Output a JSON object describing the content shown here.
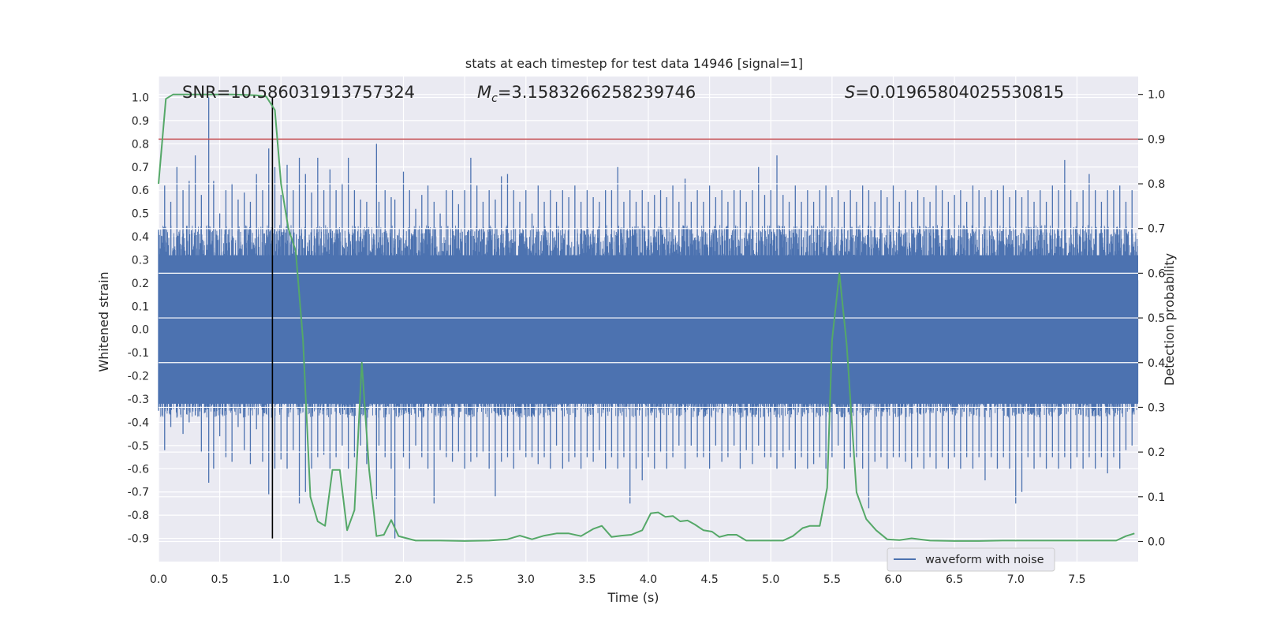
{
  "chart_data": {
    "type": "line",
    "title": "stats at each timestep for test data 14946 [signal=1]",
    "xlabel": "Time (s)",
    "ylabel": "Whitened strain",
    "y2label": "Detection probability",
    "xlim": [
      0.0,
      8.0
    ],
    "ylim": [
      -1.0,
      1.09
    ],
    "y2lim": [
      -0.045,
      1.04
    ],
    "grid": true,
    "x_ticks": [
      "0.0",
      "0.5",
      "1.0",
      "1.5",
      "2.0",
      "2.5",
      "3.0",
      "3.5",
      "4.0",
      "4.5",
      "5.0",
      "5.5",
      "6.0",
      "6.5",
      "7.0",
      "7.5"
    ],
    "y_ticks": [
      "-0.9",
      "-0.8",
      "-0.7",
      "-0.6",
      "-0.5",
      "-0.4",
      "-0.3",
      "-0.2",
      "-0.1",
      "0.0",
      "0.1",
      "0.2",
      "0.3",
      "0.4",
      "0.5",
      "0.6",
      "0.7",
      "0.8",
      "0.9",
      "1.0"
    ],
    "y2_ticks": [
      "0.0",
      "0.1",
      "0.2",
      "0.3",
      "0.4",
      "0.5",
      "0.6",
      "0.7",
      "0.8",
      "0.9",
      "1.0"
    ],
    "annotations": {
      "snr": "SNR=10.586031913757324",
      "mc_symbol": "M",
      "mc_sub": "c",
      "mc_value": "=3.1583266258239746",
      "s_symbol": "S",
      "s_value": "=0.01965804025530815"
    },
    "legend": {
      "entries": [
        "waveform with noise"
      ],
      "placement": "lower-right"
    },
    "threshold": {
      "axis": "right",
      "value": 0.9,
      "color": "#c44e52"
    },
    "marker_line": {
      "x": 0.93,
      "y_bottom": -0.9,
      "y_top": 1.0,
      "color": "#000000"
    },
    "waveform": {
      "name": "waveform with noise",
      "color": "#4c72b0",
      "peaks": [
        [
          0.0,
          0.43,
          -0.35
        ],
        [
          0.05,
          0.62,
          -0.52
        ],
        [
          0.1,
          0.55,
          -0.42
        ],
        [
          0.15,
          0.7,
          -0.38
        ],
        [
          0.2,
          0.6,
          -0.45
        ],
        [
          0.25,
          0.64,
          -0.4
        ],
        [
          0.3,
          0.75,
          -0.37
        ],
        [
          0.35,
          0.58,
          -0.53
        ],
        [
          0.41,
          1.0,
          -0.66
        ],
        [
          0.45,
          0.64,
          -0.6
        ],
        [
          0.5,
          0.5,
          -0.46
        ],
        [
          0.55,
          0.6,
          -0.55
        ],
        [
          0.6,
          0.63,
          -0.57
        ],
        [
          0.65,
          0.56,
          -0.42
        ],
        [
          0.7,
          0.59,
          -0.52
        ],
        [
          0.75,
          0.55,
          -0.58
        ],
        [
          0.8,
          0.67,
          -0.43
        ],
        [
          0.85,
          0.6,
          -0.57
        ],
        [
          0.9,
          0.78,
          -0.71
        ],
        [
          0.95,
          0.7,
          -0.6
        ],
        [
          1.0,
          0.58,
          -0.56
        ],
        [
          1.05,
          0.71,
          -0.6
        ],
        [
          1.1,
          0.6,
          -0.52
        ],
        [
          1.15,
          0.74,
          -0.75
        ],
        [
          1.2,
          0.67,
          -0.7
        ],
        [
          1.25,
          0.59,
          -0.6
        ],
        [
          1.3,
          0.74,
          -0.55
        ],
        [
          1.35,
          0.6,
          -0.54
        ],
        [
          1.4,
          0.69,
          -0.6
        ],
        [
          1.45,
          0.6,
          -0.55
        ],
        [
          1.5,
          0.63,
          -0.5
        ],
        [
          1.55,
          0.74,
          -0.6
        ],
        [
          1.6,
          0.6,
          -0.55
        ],
        [
          1.65,
          0.56,
          -0.5
        ],
        [
          1.7,
          0.55,
          -0.58
        ],
        [
          1.78,
          0.8,
          -0.73
        ],
        [
          1.8,
          0.55,
          -0.5
        ],
        [
          1.85,
          0.6,
          -0.55
        ],
        [
          1.9,
          0.57,
          -0.6
        ],
        [
          1.93,
          0.56,
          -0.9
        ],
        [
          2.0,
          0.68,
          -0.55
        ],
        [
          2.05,
          0.6,
          -0.6
        ],
        [
          2.1,
          0.52,
          -0.5
        ],
        [
          2.15,
          0.58,
          -0.55
        ],
        [
          2.2,
          0.62,
          -0.6
        ],
        [
          2.25,
          0.55,
          -0.75
        ],
        [
          2.3,
          0.5,
          -0.52
        ],
        [
          2.35,
          0.6,
          -0.55
        ],
        [
          2.4,
          0.6,
          -0.57
        ],
        [
          2.45,
          0.54,
          -0.53
        ],
        [
          2.5,
          0.6,
          -0.6
        ],
        [
          2.55,
          0.74,
          -0.57
        ],
        [
          2.6,
          0.62,
          -0.55
        ],
        [
          2.65,
          0.55,
          -0.53
        ],
        [
          2.7,
          0.6,
          -0.6
        ],
        [
          2.75,
          0.56,
          -0.72
        ],
        [
          2.8,
          0.66,
          -0.57
        ],
        [
          2.85,
          0.67,
          -0.55
        ],
        [
          2.9,
          0.6,
          -0.6
        ],
        [
          2.95,
          0.55,
          -0.52
        ],
        [
          3.0,
          0.6,
          -0.55
        ],
        [
          3.05,
          0.5,
          -0.55
        ],
        [
          3.1,
          0.62,
          -0.58
        ],
        [
          3.15,
          0.55,
          -0.55
        ],
        [
          3.2,
          0.6,
          -0.6
        ],
        [
          3.25,
          0.55,
          -0.5
        ],
        [
          3.3,
          0.6,
          -0.6
        ],
        [
          3.35,
          0.57,
          -0.57
        ],
        [
          3.4,
          0.62,
          -0.55
        ],
        [
          3.45,
          0.55,
          -0.6
        ],
        [
          3.5,
          0.6,
          -0.55
        ],
        [
          3.55,
          0.57,
          -0.57
        ],
        [
          3.6,
          0.55,
          -0.52
        ],
        [
          3.65,
          0.6,
          -0.6
        ],
        [
          3.7,
          0.6,
          -0.55
        ],
        [
          3.75,
          0.7,
          -0.6
        ],
        [
          3.8,
          0.55,
          -0.55
        ],
        [
          3.85,
          0.6,
          -0.75
        ],
        [
          3.9,
          0.55,
          -0.6
        ],
        [
          3.95,
          0.6,
          -0.65
        ],
        [
          4.0,
          0.55,
          -0.55
        ],
        [
          4.05,
          0.58,
          -0.6
        ],
        [
          4.1,
          0.6,
          -0.53
        ],
        [
          4.15,
          0.57,
          -0.6
        ],
        [
          4.2,
          0.62,
          -0.55
        ],
        [
          4.25,
          0.55,
          -0.5
        ],
        [
          4.3,
          0.65,
          -0.6
        ],
        [
          4.35,
          0.55,
          -0.5
        ],
        [
          4.4,
          0.6,
          -0.55
        ],
        [
          4.45,
          0.55,
          -0.55
        ],
        [
          4.5,
          0.62,
          -0.6
        ],
        [
          4.55,
          0.57,
          -0.5
        ],
        [
          4.6,
          0.6,
          -0.57
        ],
        [
          4.65,
          0.55,
          -0.55
        ],
        [
          4.7,
          0.6,
          -0.5
        ],
        [
          4.75,
          0.6,
          -0.6
        ],
        [
          4.8,
          0.55,
          -0.52
        ],
        [
          4.85,
          0.6,
          -0.58
        ],
        [
          4.9,
          0.7,
          -0.5
        ],
        [
          4.95,
          0.58,
          -0.55
        ],
        [
          5.0,
          0.6,
          -0.55
        ],
        [
          5.05,
          0.75,
          -0.6
        ],
        [
          5.1,
          0.58,
          -0.55
        ],
        [
          5.15,
          0.55,
          -0.52
        ],
        [
          5.2,
          0.62,
          -0.6
        ],
        [
          5.25,
          0.55,
          -0.55
        ],
        [
          5.3,
          0.6,
          -0.6
        ],
        [
          5.35,
          0.55,
          -0.58
        ],
        [
          5.4,
          0.6,
          -0.55
        ],
        [
          5.45,
          0.62,
          -0.6
        ],
        [
          5.5,
          0.57,
          -0.55
        ],
        [
          5.55,
          0.6,
          -0.5
        ],
        [
          5.6,
          0.55,
          -0.6
        ],
        [
          5.65,
          0.6,
          -0.55
        ],
        [
          5.7,
          0.55,
          -0.55
        ],
        [
          5.75,
          0.62,
          -0.6
        ],
        [
          5.8,
          0.6,
          -0.77
        ],
        [
          5.85,
          0.55,
          -0.57
        ],
        [
          5.9,
          0.6,
          -0.55
        ],
        [
          5.95,
          0.57,
          -0.6
        ],
        [
          6.0,
          0.62,
          -0.55
        ],
        [
          6.05,
          0.55,
          -0.55
        ],
        [
          6.1,
          0.6,
          -0.57
        ],
        [
          6.15,
          0.55,
          -0.6
        ],
        [
          6.2,
          0.6,
          -0.55
        ],
        [
          6.25,
          0.57,
          -0.6
        ],
        [
          6.3,
          0.55,
          -0.55
        ],
        [
          6.35,
          0.62,
          -0.6
        ],
        [
          6.4,
          0.6,
          -0.55
        ],
        [
          6.45,
          0.55,
          -0.6
        ],
        [
          6.5,
          0.58,
          -0.55
        ],
        [
          6.55,
          0.6,
          -0.6
        ],
        [
          6.6,
          0.55,
          -0.55
        ],
        [
          6.65,
          0.62,
          -0.6
        ],
        [
          6.7,
          0.6,
          -0.55
        ],
        [
          6.75,
          0.57,
          -0.65
        ],
        [
          6.8,
          0.6,
          -0.55
        ],
        [
          6.85,
          0.6,
          -0.6
        ],
        [
          6.9,
          0.62,
          -0.55
        ],
        [
          6.95,
          0.57,
          -0.6
        ],
        [
          7.0,
          0.6,
          -0.75
        ],
        [
          7.05,
          0.57,
          -0.7
        ],
        [
          7.1,
          0.6,
          -0.55
        ],
        [
          7.15,
          0.55,
          -0.6
        ],
        [
          7.2,
          0.6,
          -0.55
        ],
        [
          7.25,
          0.55,
          -0.6
        ],
        [
          7.3,
          0.62,
          -0.55
        ],
        [
          7.35,
          0.6,
          -0.6
        ],
        [
          7.4,
          0.73,
          -0.55
        ],
        [
          7.45,
          0.6,
          -0.6
        ],
        [
          7.5,
          0.55,
          -0.55
        ],
        [
          7.55,
          0.6,
          -0.6
        ],
        [
          7.6,
          0.67,
          -0.55
        ],
        [
          7.65,
          0.6,
          -0.6
        ],
        [
          7.7,
          0.55,
          -0.55
        ],
        [
          7.75,
          0.6,
          -0.62
        ],
        [
          7.8,
          0.6,
          -0.55
        ],
        [
          7.85,
          0.62,
          -0.6
        ],
        [
          7.9,
          0.55,
          -0.52
        ],
        [
          7.95,
          0.6,
          -0.5
        ]
      ]
    },
    "detection_probability": {
      "name": "Detection probability",
      "color": "#55a868",
      "x": [
        0.0,
        0.06,
        0.12,
        0.2,
        0.4,
        0.6,
        0.8,
        0.88,
        0.95,
        1.0,
        1.06,
        1.12,
        1.18,
        1.24,
        1.3,
        1.36,
        1.42,
        1.48,
        1.54,
        1.6,
        1.66,
        1.72,
        1.78,
        1.84,
        1.9,
        1.96,
        2.1,
        2.3,
        2.5,
        2.7,
        2.85,
        2.95,
        3.05,
        3.15,
        3.25,
        3.35,
        3.45,
        3.55,
        3.62,
        3.7,
        3.78,
        3.86,
        3.95,
        4.02,
        4.08,
        4.14,
        4.2,
        4.26,
        4.32,
        4.38,
        4.45,
        4.52,
        4.58,
        4.65,
        4.72,
        4.8,
        4.9,
        5.0,
        5.1,
        5.18,
        5.26,
        5.32,
        5.4,
        5.46,
        5.5,
        5.56,
        5.62,
        5.7,
        5.78,
        5.86,
        5.95,
        6.05,
        6.15,
        6.3,
        6.5,
        6.7,
        6.9,
        7.1,
        7.3,
        7.5,
        7.7,
        7.82,
        7.9,
        7.97
      ],
      "y": [
        0.8,
        0.99,
        1.0,
        1.0,
        1.0,
        1.0,
        0.998,
        0.995,
        0.965,
        0.8,
        0.7,
        0.65,
        0.45,
        0.1,
        0.045,
        0.035,
        0.16,
        0.16,
        0.025,
        0.07,
        0.4,
        0.16,
        0.012,
        0.015,
        0.048,
        0.012,
        0.002,
        0.002,
        0.001,
        0.002,
        0.005,
        0.013,
        0.005,
        0.013,
        0.018,
        0.018,
        0.012,
        0.028,
        0.035,
        0.01,
        0.013,
        0.015,
        0.025,
        0.063,
        0.065,
        0.055,
        0.057,
        0.045,
        0.047,
        0.038,
        0.025,
        0.022,
        0.01,
        0.015,
        0.015,
        0.002,
        0.002,
        0.002,
        0.002,
        0.012,
        0.03,
        0.035,
        0.035,
        0.12,
        0.45,
        0.6,
        0.44,
        0.11,
        0.05,
        0.025,
        0.005,
        0.003,
        0.007,
        0.002,
        0.001,
        0.001,
        0.002,
        0.002,
        0.002,
        0.002,
        0.002,
        0.002,
        0.012,
        0.018
      ]
    },
    "colors": {
      "background": "#eaeaf2",
      "grid": "#ffffff",
      "text": "#262626"
    }
  }
}
